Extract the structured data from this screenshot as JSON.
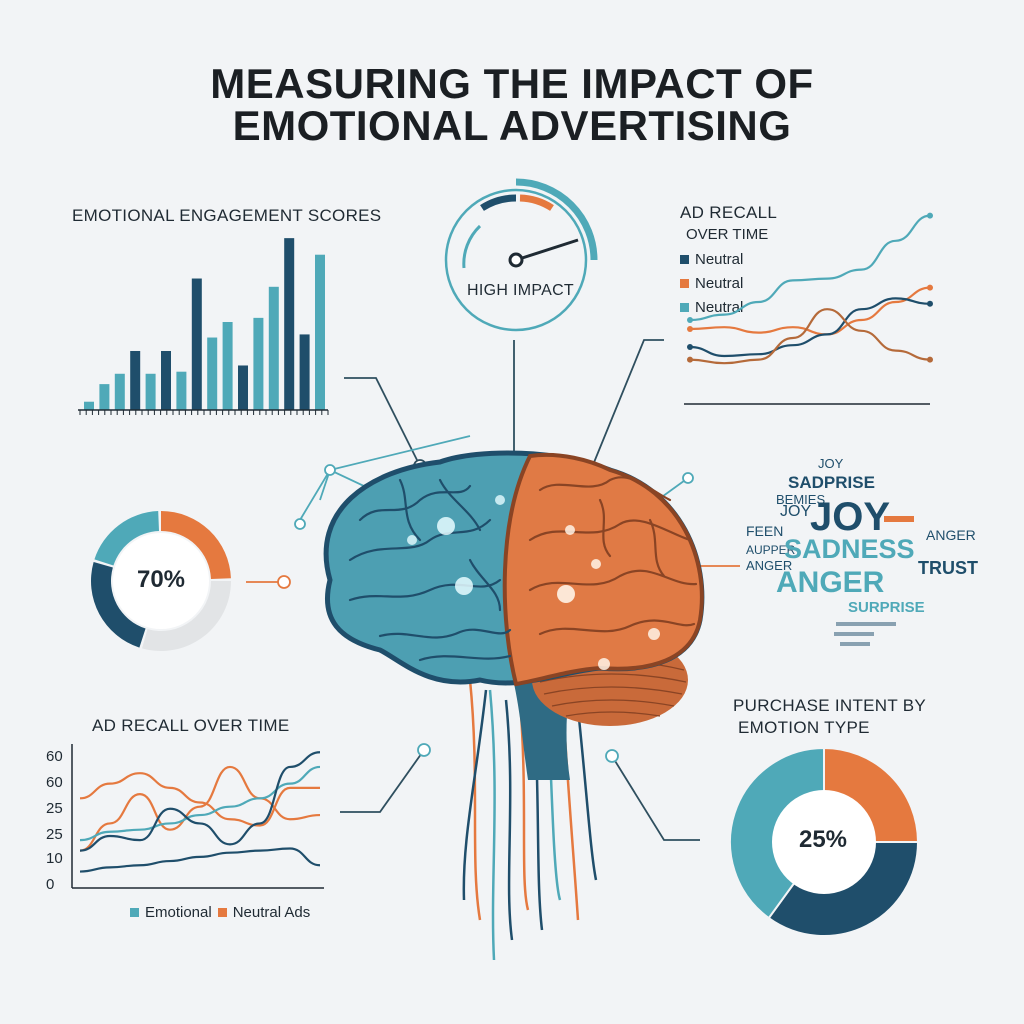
{
  "title": {
    "line1": "MEASURING THE IMPACT OF",
    "line2": "EMOTIONAL ADVERTISING"
  },
  "colors": {
    "teal": "#4fa9b8",
    "navy": "#1f4e6b",
    "orange": "#e5793f",
    "grey": "#e2e4e6",
    "line": "#2f4f5f"
  },
  "gauge": {
    "label": "HIGH IMPACT",
    "level": 0.78
  },
  "donut": {
    "label": "70%",
    "value": 70
  },
  "pie": {
    "label": "25%",
    "title_line1": "PURCHASE INTENT BY",
    "title_line2": "EMOTION TYPE"
  },
  "wordcloud": {
    "words": [
      "JOY",
      "SADPRISE",
      "JOY",
      "SADNESS",
      "ANGER",
      "TRUST",
      "SURPRISE",
      "FEEN",
      "ANGER",
      "AUPPER",
      "BEMIES",
      "ANGER"
    ]
  },
  "chart_data": [
    {
      "type": "bar",
      "title": "EMOTIONAL ENGAGEMENT SCORES",
      "values": [
        8,
        25,
        35,
        57,
        35,
        57,
        37,
        127,
        70,
        85,
        43,
        89,
        119,
        166,
        73,
        150
      ],
      "colors": [
        "#4fa9b8",
        "#4fa9b8",
        "#4fa9b8",
        "#1f4e6b",
        "#4fa9b8",
        "#1f4e6b",
        "#4fa9b8",
        "#1f4e6b",
        "#4fa9b8",
        "#4fa9b8",
        "#1f4e6b",
        "#4fa9b8",
        "#4fa9b8",
        "#1f4e6b",
        "#1f4e6b",
        "#4fa9b8"
      ],
      "ylim": [
        0,
        170
      ]
    },
    {
      "type": "line",
      "title": "AD RECALL",
      "subtitle": "OVER TIME",
      "legend": [
        "Neutral",
        "Neutral",
        "Neutral"
      ],
      "series": [
        {
          "color": "#4fa9b8",
          "x": [
            0,
            1,
            2,
            3,
            4,
            5,
            6,
            7
          ],
          "y": [
            4.0,
            4.3,
            5.0,
            6.2,
            6.3,
            6.8,
            8.4,
            9.8
          ]
        },
        {
          "color": "#e5793f",
          "x": [
            0,
            1,
            2,
            3,
            4,
            5,
            6,
            7
          ],
          "y": [
            3.5,
            3.6,
            3.3,
            3.6,
            3.2,
            4.0,
            5.0,
            5.8
          ]
        },
        {
          "color": "#1f4e6b",
          "x": [
            0,
            1,
            2,
            3,
            4,
            5,
            6,
            7
          ],
          "y": [
            2.5,
            2.0,
            2.1,
            2.6,
            3.2,
            4.6,
            5.2,
            4.9
          ]
        },
        {
          "color": "#b56a3a",
          "x": [
            0,
            1,
            2,
            3,
            4,
            5,
            6,
            7
          ],
          "y": [
            1.8,
            1.6,
            1.8,
            3.0,
            4.6,
            3.4,
            2.3,
            1.8
          ]
        }
      ],
      "ylim": [
        0,
        10
      ]
    },
    {
      "type": "line",
      "title": "AD RECALL OVER TIME",
      "yticks": [
        "60",
        "60",
        "25",
        "25",
        "10",
        "0"
      ],
      "legend": [
        "Emotional",
        "Neutral Ads"
      ],
      "series": [
        {
          "color": "#e5793f",
          "x": [
            0,
            1,
            2,
            3,
            4,
            5,
            6,
            7,
            8
          ],
          "y": [
            40,
            47,
            52,
            45,
            38,
            30,
            27,
            45,
            45
          ]
        },
        {
          "color": "#e5793f",
          "x": [
            0,
            1,
            2,
            3,
            4,
            5,
            6,
            7,
            8
          ],
          "y": [
            15,
            28,
            42,
            25,
            36,
            55,
            40,
            30,
            32
          ]
        },
        {
          "color": "#4fa9b8",
          "x": [
            0,
            1,
            2,
            3,
            4,
            5,
            6,
            7,
            8
          ],
          "y": [
            20,
            24,
            25,
            28,
            32,
            36,
            40,
            47,
            55
          ]
        },
        {
          "color": "#1f4e6b",
          "x": [
            0,
            1,
            2,
            3,
            4,
            5,
            6,
            7,
            8
          ],
          "y": [
            15,
            22,
            20,
            35,
            28,
            18,
            28,
            55,
            62
          ]
        },
        {
          "color": "#1f4e6b",
          "x": [
            0,
            1,
            2,
            3,
            4,
            5,
            6,
            7,
            8
          ],
          "y": [
            5,
            7,
            8,
            10,
            12,
            14,
            15,
            16,
            8
          ]
        }
      ],
      "ylim": [
        0,
        65
      ]
    },
    {
      "type": "pie",
      "title": "PURCHASE INTENT BY EMOTION TYPE",
      "slices": [
        {
          "label": "25%",
          "value": 25,
          "color": "#e5793f"
        },
        {
          "value": 35,
          "color": "#1f4e6b"
        },
        {
          "value": 40,
          "color": "#4fa9b8"
        }
      ]
    },
    {
      "type": "pie",
      "title": "",
      "slices": [
        {
          "value": 25,
          "color": "#e5793f"
        },
        {
          "value": 30,
          "color": "#e2e4e6"
        },
        {
          "value": 25,
          "color": "#1f4e6b"
        },
        {
          "value": 20,
          "color": "#4fa9b8"
        }
      ]
    }
  ]
}
